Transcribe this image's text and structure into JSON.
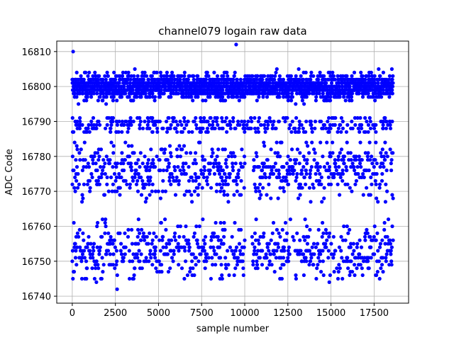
{
  "chart_data": {
    "type": "scatter",
    "title": "channel079 logain raw data",
    "xlabel": "sample number",
    "ylabel": "ADC Code",
    "xlim": [
      -900,
      19500
    ],
    "ylim": [
      16738,
      16813
    ],
    "xticks": [
      0,
      2500,
      5000,
      7500,
      10000,
      12500,
      15000,
      17500
    ],
    "yticks": [
      16740,
      16750,
      16760,
      16770,
      16780,
      16790,
      16800,
      16810
    ],
    "grid": true,
    "marker_color": "#0000ff",
    "sample_count": 18600,
    "bands": [
      {
        "name": "upper",
        "y_min": 16791,
        "y_max": 16808,
        "center": 16800,
        "density": "very high"
      },
      {
        "name": "middle",
        "y_min": 16767,
        "y_max": 16784,
        "center": 16776,
        "density": "medium"
      },
      {
        "name": "lower",
        "y_min": 16745,
        "y_max": 16762,
        "center": 16753,
        "density": "medium"
      }
    ],
    "notable_points": [
      {
        "x": 50,
        "y": 16810
      },
      {
        "x": 9500,
        "y": 16812
      },
      {
        "x": 2600,
        "y": 16742
      },
      {
        "x": 1400,
        "y": 16744
      },
      {
        "x": 14900,
        "y": 16744
      }
    ],
    "band_gaps": [
      {
        "band": "middle",
        "x_from": 10000,
        "x_to": 10500
      },
      {
        "band": "lower",
        "x_from": 10000,
        "x_to": 10400
      }
    ]
  }
}
